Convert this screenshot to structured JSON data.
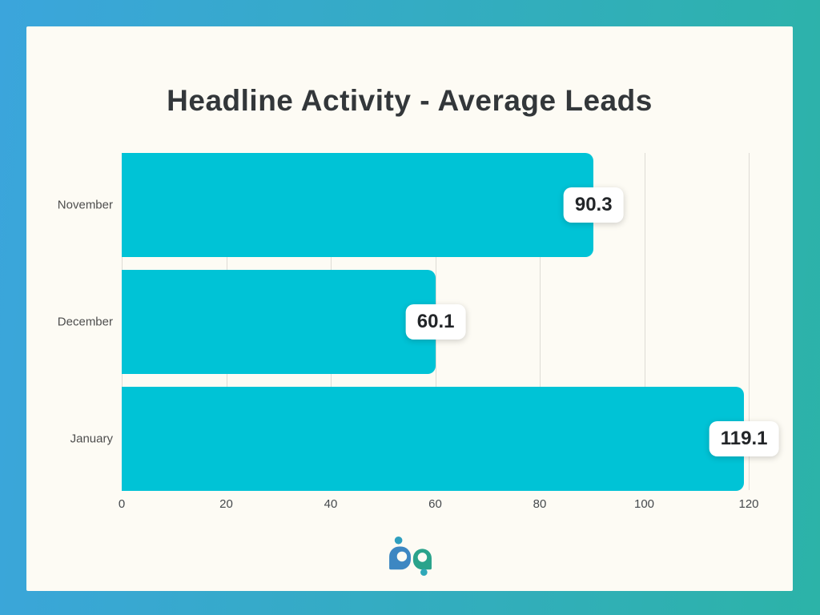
{
  "chart_data": {
    "type": "bar",
    "orientation": "horizontal",
    "title": "Headline Activity - Average Leads",
    "categories": [
      "November",
      "December",
      "January"
    ],
    "values": [
      90.3,
      60.1,
      119.1
    ],
    "value_labels": [
      "90.3",
      "60.1",
      "119.1"
    ],
    "xlabel": "",
    "ylabel": "",
    "xlim": [
      0,
      120
    ],
    "xticks": [
      "0",
      "20",
      "40",
      "60",
      "80",
      "100",
      "120"
    ],
    "grid": "vertical gridlines at each x tick",
    "legend": "none",
    "bar_color": "#00C3D6"
  },
  "branding": {
    "logo_name": "bp-logo"
  },
  "colors": {
    "frame_gradient_left": "#3BA5DC",
    "frame_gradient_right": "#2CB3A8",
    "panel_background": "#FDFBF4",
    "bar": "#00C3D6",
    "title_text": "#33373A",
    "gridline": "#DEDBD5",
    "tick_text": "#45494D",
    "category_text": "#4D4D4D",
    "value_text": "#222528",
    "value_chip_background": "#FFFFFF",
    "logo_b": "#3D87C2",
    "logo_p": "#2AA38B",
    "logo_dot_top": "#2E9FBF",
    "logo_dot_bottom": "#2FA8B8"
  }
}
